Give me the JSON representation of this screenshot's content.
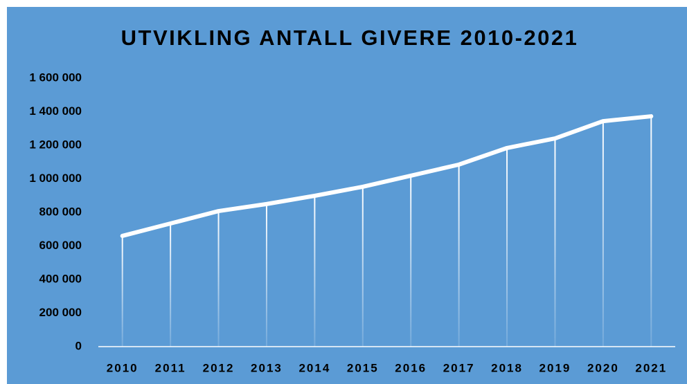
{
  "chart_data": {
    "type": "line",
    "title": "UTVIKLING ANTALL GIVERE 2010-2021",
    "categories": [
      "2010",
      "2011",
      "2012",
      "2013",
      "2014",
      "2015",
      "2016",
      "2017",
      "2018",
      "2019",
      "2020",
      "2021"
    ],
    "values": [
      660000,
      734000,
      808000,
      850000,
      899000,
      953000,
      1019000,
      1085000,
      1184000,
      1241000,
      1344000,
      1373000
    ],
    "color": "#ffffff",
    "drop_lines": true,
    "ylim": [
      0,
      1600000
    ],
    "yticks": [
      0,
      {
        "value": 200000,
        "label": "200 000"
      },
      {
        "value": 400000,
        "label": "400 000"
      },
      {
        "value": 600000,
        "label": "600 000"
      },
      {
        "value": 800000,
        "label": "800 000"
      },
      {
        "value": 1000000,
        "label": "1 000 000"
      },
      {
        "value": 1200000,
        "label": "1 200 000"
      },
      {
        "value": 1400000,
        "label": "1 400 000"
      },
      {
        "value": 1600000,
        "label": "1 600 000"
      }
    ],
    "grid": false
  }
}
